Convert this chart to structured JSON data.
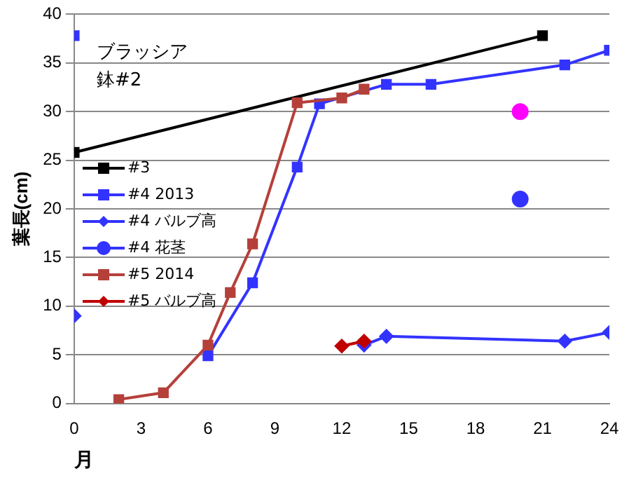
{
  "chart_data": {
    "type": "line",
    "xlabel": "月",
    "ylabel": "葉長(cm)",
    "annotations": [
      "ブラッシア",
      "鉢#2"
    ],
    "xlim": [
      0,
      24
    ],
    "xticks": [
      0,
      3,
      6,
      9,
      12,
      15,
      18,
      21,
      24
    ],
    "ylim": [
      0,
      40
    ],
    "yticks": [
      0,
      5,
      10,
      15,
      20,
      25,
      30,
      35,
      40
    ],
    "grid": "y",
    "legend": "left",
    "series": [
      {
        "name": "#3",
        "color": "#000000",
        "marker": "square",
        "x": [
          0,
          21
        ],
        "values": [
          25.8,
          37.8
        ]
      },
      {
        "name": "#4 2013",
        "color": "#3333ff",
        "marker": "square",
        "x": [
          0,
          3,
          6,
          8,
          10,
          11,
          14,
          16,
          22,
          24
        ],
        "values": [
          37.8,
          null,
          4.9,
          12.4,
          24.3,
          30.8,
          32.8,
          32.8,
          34.8,
          36.3
        ]
      },
      {
        "name": "#4 バルブ高",
        "color": "#3333ff",
        "marker": "diamond",
        "x": [
          0,
          6,
          13,
          14,
          22,
          24
        ],
        "values": [
          9,
          null,
          6,
          6.9,
          6.4,
          7.3
        ]
      },
      {
        "name": "#4 花茎",
        "color": "#3333ff",
        "marker": "circle",
        "x": [
          20
        ],
        "values": [
          21
        ]
      },
      {
        "name": "#5 2014",
        "color": "#b5403a",
        "marker": "square",
        "x": [
          2,
          4,
          6,
          7,
          8,
          10,
          12,
          13
        ],
        "values": [
          0.4,
          1.1,
          6,
          11.4,
          16.4,
          30.9,
          31.4,
          32.3
        ]
      },
      {
        "name": "#5 バルブ高",
        "color": "#c00000",
        "marker": "diamond",
        "x": [
          12,
          13
        ],
        "values": [
          5.9,
          6.4
        ]
      },
      {
        "color": "#ff00ff",
        "marker": "circle",
        "x": [
          20
        ],
        "values": [
          30
        ]
      }
    ]
  }
}
